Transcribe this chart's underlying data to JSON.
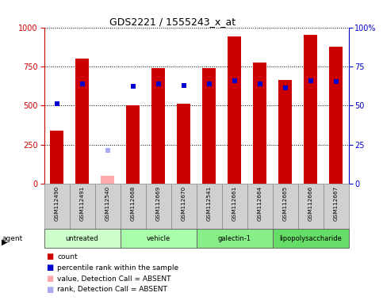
{
  "title": "GDS2221 / 1555243_x_at",
  "samples": [
    "GSM112490",
    "GSM112491",
    "GSM112540",
    "GSM112668",
    "GSM112669",
    "GSM112670",
    "GSM112541",
    "GSM112661",
    "GSM112664",
    "GSM112665",
    "GSM112666",
    "GSM112667"
  ],
  "count_values": [
    340,
    800,
    null,
    500,
    740,
    510,
    740,
    940,
    775,
    665,
    950,
    875
  ],
  "count_absent": [
    null,
    null,
    50,
    null,
    null,
    null,
    null,
    null,
    null,
    null,
    null,
    null
  ],
  "percentile_values": [
    51,
    64,
    null,
    62.5,
    64,
    63,
    64,
    66,
    64,
    61.5,
    66,
    65.5
  ],
  "percentile_absent": [
    null,
    null,
    21.5,
    null,
    null,
    null,
    null,
    null,
    null,
    null,
    null,
    null
  ],
  "groups": [
    {
      "label": "untreated",
      "start": 0,
      "end": 3,
      "color": "#ccffcc"
    },
    {
      "label": "vehicle",
      "start": 3,
      "end": 6,
      "color": "#aaffaa"
    },
    {
      "label": "galectin-1",
      "start": 6,
      "end": 9,
      "color": "#88ee88"
    },
    {
      "label": "lipopolysaccharide",
      "start": 9,
      "end": 12,
      "color": "#66dd66"
    }
  ],
  "bar_color": "#cc0000",
  "bar_absent_color": "#ffaaaa",
  "dot_color": "#0000cc",
  "dot_absent_color": "#aaaaee",
  "ylim_left": [
    0,
    1000
  ],
  "ylim_right": [
    0,
    100
  ],
  "yticks_left": [
    0,
    250,
    500,
    750,
    1000
  ],
  "yticks_right": [
    0,
    25,
    50,
    75,
    100
  ],
  "plot_bg": "#ffffff",
  "bar_width": 0.55,
  "dot_size": 4
}
